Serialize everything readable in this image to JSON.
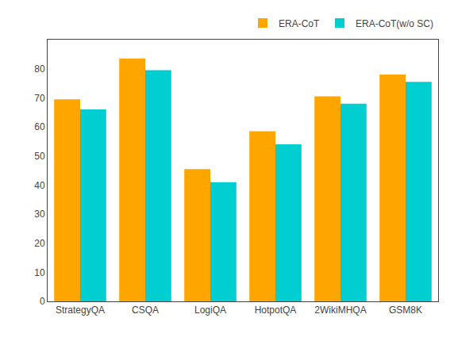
{
  "chart_data": {
    "type": "bar",
    "categories": [
      "StrategyQA",
      "CSQA",
      "LogiQA",
      "HotpotQA",
      "2WikiMHQA",
      "GSM8K"
    ],
    "series": [
      {
        "name": "ERA-CoT",
        "color": "#FFA500",
        "values": [
          69.5,
          83.5,
          45.5,
          58.5,
          70.5,
          78.0
        ]
      },
      {
        "name": "ERA-CoT(w/o SC)",
        "color": "#00CED1",
        "values": [
          66.0,
          79.5,
          41.0,
          54.0,
          68.0,
          75.5
        ]
      }
    ],
    "ylim": [
      0,
      90
    ],
    "yticks": [
      0,
      10,
      20,
      30,
      40,
      50,
      60,
      70,
      80
    ],
    "grid": false,
    "legend": "upper right"
  }
}
